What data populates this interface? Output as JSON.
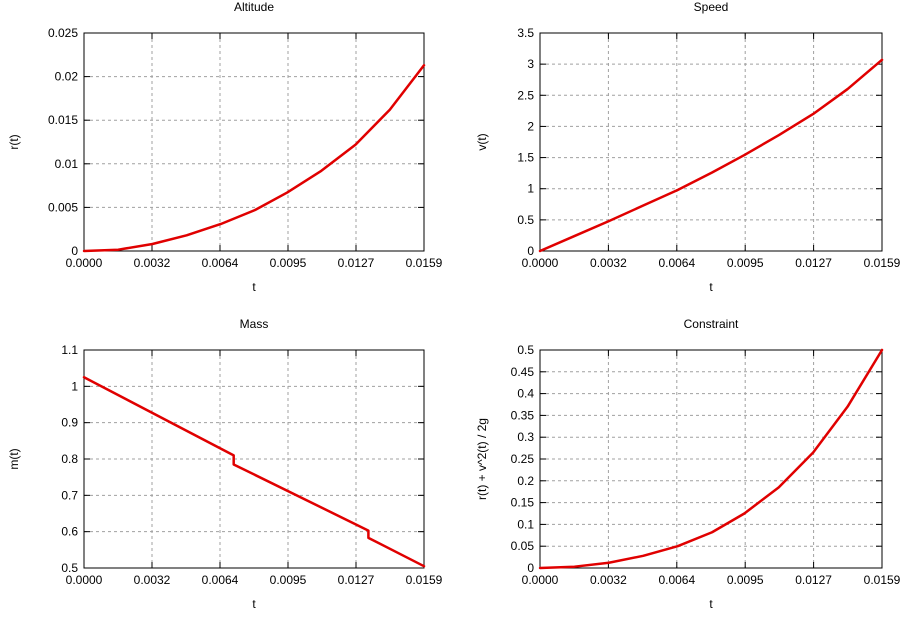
{
  "chart_data": [
    {
      "type": "line",
      "title": "Altitude",
      "xlabel": "t",
      "ylabel": "r(t)",
      "xlim": [
        0,
        0.0159
      ],
      "ylim": [
        0,
        0.025
      ],
      "xticks": [
        "0.0000",
        "0.0032",
        "0.0064",
        "0.0095",
        "0.0127",
        "0.0159"
      ],
      "yticks": [
        "0",
        "0.005",
        "0.01",
        "0.015",
        "0.02",
        "0.025"
      ],
      "grid": true,
      "series": [
        {
          "color": "#e00000",
          "x": [
            0,
            0.0016,
            0.0032,
            0.0048,
            0.0064,
            0.008,
            0.0095,
            0.0111,
            0.0127,
            0.0143,
            0.0159
          ],
          "y": [
            0,
            0.00015,
            0.0008,
            0.0018,
            0.0031,
            0.0047,
            0.0067,
            0.0092,
            0.0122,
            0.0162,
            0.0213
          ]
        }
      ]
    },
    {
      "type": "line",
      "title": "Speed",
      "xlabel": "t",
      "ylabel": "v(t)",
      "xlim": [
        0,
        0.0159
      ],
      "ylim": [
        0,
        3.5
      ],
      "xticks": [
        "0.0000",
        "0.0032",
        "0.0064",
        "0.0095",
        "0.0127",
        "0.0159"
      ],
      "yticks": [
        "0",
        "0.5",
        "1",
        "1.5",
        "2",
        "2.5",
        "3",
        "3.5"
      ],
      "grid": true,
      "series": [
        {
          "color": "#e00000",
          "x": [
            0,
            0.0016,
            0.0032,
            0.0048,
            0.0064,
            0.008,
            0.0095,
            0.0111,
            0.0127,
            0.0143,
            0.0159
          ],
          "y": [
            0,
            0.24,
            0.48,
            0.73,
            0.98,
            1.26,
            1.54,
            1.86,
            2.2,
            2.6,
            3.07
          ]
        }
      ]
    },
    {
      "type": "line",
      "title": "Mass",
      "xlabel": "t",
      "ylabel": "m(t)",
      "xlim": [
        0,
        0.0159
      ],
      "ylim": [
        0.5,
        1.1
      ],
      "xticks": [
        "0.0000",
        "0.0032",
        "0.0064",
        "0.0095",
        "0.0127",
        "0.0159"
      ],
      "yticks": [
        "0.5",
        "0.6",
        "0.7",
        "0.8",
        "0.9",
        "1",
        "1.1"
      ],
      "grid": true,
      "series": [
        {
          "color": "#e00000",
          "x": [
            0,
            0.007,
            0.007,
            0.0133,
            0.0133,
            0.0159
          ],
          "y": [
            1.025,
            0.81,
            0.785,
            0.603,
            0.583,
            0.505
          ]
        }
      ]
    },
    {
      "type": "line",
      "title": "Constraint",
      "xlabel": "t",
      "ylabel": "r(t) + v^2(t) / 2g",
      "xlim": [
        0,
        0.0159
      ],
      "ylim": [
        0,
        0.5
      ],
      "xticks": [
        "0.0000",
        "0.0032",
        "0.0064",
        "0.0095",
        "0.0127",
        "0.0159"
      ],
      "yticks": [
        "0",
        "0.05",
        "0.1",
        "0.15",
        "0.2",
        "0.25",
        "0.3",
        "0.35",
        "0.4",
        "0.45",
        "0.5"
      ],
      "grid": true,
      "series": [
        {
          "color": "#e00000",
          "x": [
            0,
            0.0016,
            0.0032,
            0.0048,
            0.0064,
            0.008,
            0.0095,
            0.0111,
            0.0127,
            0.0143,
            0.0159
          ],
          "y": [
            0,
            0.003,
            0.012,
            0.028,
            0.05,
            0.082,
            0.125,
            0.185,
            0.265,
            0.37,
            0.5
          ]
        }
      ]
    }
  ]
}
